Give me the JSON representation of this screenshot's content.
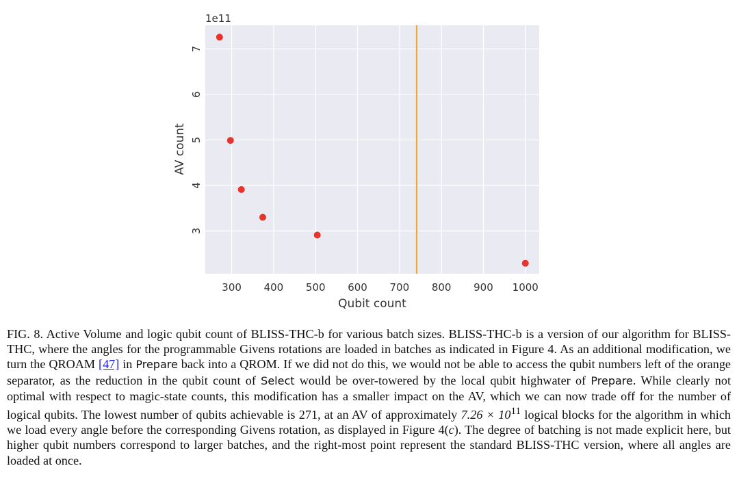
{
  "chart_data": {
    "type": "scatter",
    "xlabel": "Qubit count",
    "ylabel": "AV count",
    "y_scale_label": "1e11",
    "y_multiplier": 100000000000,
    "xlim": [
      237,
      1033
    ],
    "ylim": [
      206000000000.0,
      752000000000.0
    ],
    "xticks": [
      300,
      400,
      500,
      600,
      700,
      800,
      900,
      1000
    ],
    "yticks": [
      300000000000.0,
      400000000000.0,
      500000000000.0,
      600000000000.0,
      700000000000.0
    ],
    "grid": true,
    "background": "#eaeaf2",
    "point_color": "#e8332a",
    "separator_color": "#f0a830",
    "separator_x": 741,
    "points": [
      {
        "x": 271,
        "y": 726000000000.0
      },
      {
        "x": 297,
        "y": 499000000000.0
      },
      {
        "x": 323,
        "y": 391000000000.0
      },
      {
        "x": 374,
        "y": 330000000000.0
      },
      {
        "x": 504,
        "y": 291000000000.0
      },
      {
        "x": 1000,
        "y": 229000000000.0
      }
    ]
  },
  "caption": {
    "fig_label": "FIG. 8.",
    "part1": " Active Volume and logic qubit count of BLISS-THC-b for various batch sizes. BLISS-THC-b is a version of our algorithm for BLISS-THC, where the angles for the programmable Givens rotations are loaded in batches as indicated in Figure 4. As an additional modification, we turn the QROAM ",
    "ref": "[47]",
    "part2": " in ",
    "prepare1": "Prepare",
    "part3": " back into a QROM. If we did not do this, we would not be able to access the qubit numbers left of the orange separator, as the reduction in the qubit count of ",
    "select": "Select",
    "part4": " would be over-towered by the local qubit highwater of ",
    "prepare2": "Prepare",
    "part5": ". While clearly not optimal with respect to magic-state counts, this modification has a smaller impact on the AV, which we can now trade off for the number of logical qubits. The lowest number of qubits achievable is 271, at an AV of approximately ",
    "math_value": "7.26 × 10",
    "math_exp": "11",
    "part6": " logical blocks for the algorithm in which we load every angle before the corresponding Givens rotation, as displayed in Figure 4(",
    "math_c": "c",
    "part7": "). The degree of batching is not made explicit here, but higher qubit numbers correspond to larger batches, and the right-most point represent the standard BLISS-THC version, where all angles are loaded at once."
  }
}
